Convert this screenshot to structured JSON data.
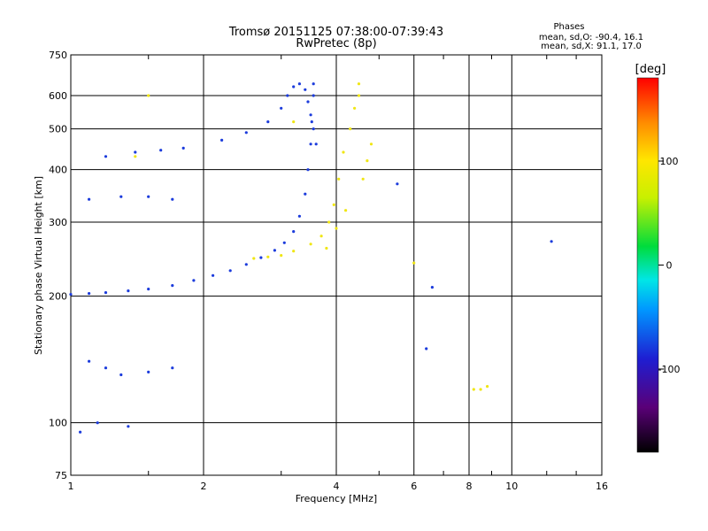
{
  "chart_data": {
    "type": "scatter",
    "title": "Tromsø 20151125 07:38:00-07:39:43",
    "subtitle": "RwPretec (8p)",
    "xlabel": "Frequency [MHz]",
    "ylabel": "Stationary phase Virtual Height [km]",
    "x_scale": "log",
    "y_scale": "log",
    "xlim": [
      1,
      16
    ],
    "ylim": [
      75,
      750
    ],
    "x_ticks": [
      1,
      2,
      4,
      6,
      8,
      10,
      16
    ],
    "x_tick_labels": [
      "1",
      "2",
      "4",
      "6",
      "8",
      "10",
      "16"
    ],
    "y_ticks": [
      75,
      100,
      200,
      300,
      400,
      500,
      600,
      750
    ],
    "y_tick_labels": [
      "75",
      "100",
      "200",
      "300",
      "400",
      "500",
      "600",
      "750"
    ],
    "grid": true,
    "stats": {
      "heading": "Phases",
      "line1": "mean, sd,O: -90.4, 16.1",
      "line2": "mean, sd,X:  91.1, 17.0"
    },
    "colorbar": {
      "label": "[deg]",
      "range": [
        -180,
        180
      ],
      "ticks": [
        100,
        0,
        -100
      ],
      "tick_labels": [
        "100",
        "0",
        "-100"
      ]
    },
    "series": [
      {
        "mode": "O",
        "phase": -90,
        "color": "#1c3cdc",
        "points": [
          [
            1.0,
            202
          ],
          [
            1.1,
            203
          ],
          [
            1.2,
            204
          ],
          [
            1.35,
            206
          ],
          [
            1.5,
            208
          ],
          [
            1.7,
            212
          ],
          [
            1.9,
            218
          ],
          [
            2.1,
            224
          ],
          [
            2.3,
            230
          ],
          [
            2.5,
            238
          ],
          [
            2.7,
            247
          ],
          [
            2.9,
            257
          ],
          [
            3.05,
            268
          ],
          [
            3.2,
            285
          ],
          [
            3.3,
            310
          ],
          [
            3.4,
            350
          ],
          [
            3.45,
            400
          ],
          [
            3.5,
            460
          ],
          [
            3.52,
            520
          ],
          [
            3.55,
            600
          ],
          [
            3.55,
            640
          ],
          [
            2.2,
            470
          ],
          [
            2.5,
            490
          ],
          [
            2.8,
            520
          ],
          [
            3.0,
            560
          ],
          [
            3.1,
            600
          ],
          [
            3.2,
            630
          ],
          [
            3.3,
            640
          ],
          [
            3.4,
            620
          ],
          [
            3.45,
            580
          ],
          [
            3.5,
            540
          ],
          [
            3.55,
            500
          ],
          [
            3.6,
            460
          ],
          [
            1.2,
            430
          ],
          [
            1.4,
            440
          ],
          [
            1.6,
            445
          ],
          [
            1.8,
            450
          ],
          [
            1.1,
            340
          ],
          [
            1.3,
            345
          ],
          [
            1.5,
            345
          ],
          [
            1.7,
            340
          ],
          [
            1.3,
            130
          ],
          [
            1.5,
            132
          ],
          [
            1.7,
            135
          ],
          [
            1.1,
            140
          ],
          [
            1.2,
            135
          ],
          [
            1.05,
            95
          ],
          [
            1.15,
            100
          ],
          [
            1.35,
            98
          ],
          [
            5.5,
            370
          ],
          [
            6.6,
            210
          ],
          [
            6.4,
            150
          ],
          [
            12.3,
            270
          ]
        ]
      },
      {
        "mode": "X",
        "phase": 91,
        "color": "#f0e614",
        "points": [
          [
            2.6,
            246
          ],
          [
            2.8,
            248
          ],
          [
            3.0,
            250
          ],
          [
            3.2,
            256
          ],
          [
            3.5,
            266
          ],
          [
            3.7,
            278
          ],
          [
            3.85,
            300
          ],
          [
            3.95,
            330
          ],
          [
            4.05,
            380
          ],
          [
            4.15,
            440
          ],
          [
            4.3,
            500
          ],
          [
            4.4,
            560
          ],
          [
            4.5,
            600
          ],
          [
            4.5,
            640
          ],
          [
            4.6,
            380
          ],
          [
            4.7,
            420
          ],
          [
            4.8,
            460
          ],
          [
            3.8,
            260
          ],
          [
            4.0,
            290
          ],
          [
            4.2,
            320
          ],
          [
            1.4,
            430
          ],
          [
            1.5,
            600
          ],
          [
            3.2,
            520
          ],
          [
            8.2,
            120
          ],
          [
            8.5,
            120
          ],
          [
            8.8,
            122
          ],
          [
            6.0,
            240
          ]
        ]
      }
    ]
  }
}
